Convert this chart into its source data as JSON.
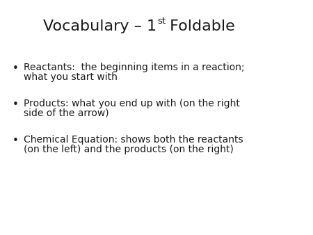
{
  "background_color": "#ffffff",
  "text_color": "#1a1a1a",
  "title_fontsize": 16,
  "body_fontsize": 10,
  "bullet_char": "•",
  "bullets": [
    {
      "line1": "Reactants:  the beginning items in a reaction;",
      "line2": "what you start with"
    },
    {
      "line1": "Products: what you end up with (on the right",
      "line2": "side of the arrow)"
    },
    {
      "line1": "Chemical Equation: shows both the reactants",
      "line2": "(on the left) and the products (on the right)"
    }
  ],
  "font_family": "DejaVu Sans"
}
